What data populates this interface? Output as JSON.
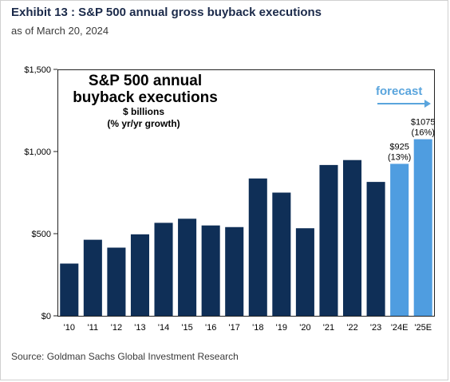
{
  "header": {
    "title": "Exhibit 13 : S&P 500 annual gross buyback executions",
    "subtitle": "as of March 20, 2024"
  },
  "source": "Source: Goldman Sachs Global Investment Research",
  "colors": {
    "actual": "#0f2f57",
    "forecast": "#4f9de0",
    "forecast_text": "#5aa5dd"
  },
  "chart_data": {
    "type": "bar",
    "title_lines": [
      "S&P 500 annual",
      "buyback executions"
    ],
    "subtitle_lines": [
      "$ billions",
      "(% yr/yr growth)"
    ],
    "forecast_label": "forecast",
    "ylim": [
      0,
      1500
    ],
    "y_ticks": [
      0,
      500,
      1000,
      1500
    ],
    "y_tick_labels": [
      "$0",
      "$500",
      "$1,000",
      "$1,500"
    ],
    "categories": [
      "'10",
      "'11",
      "'12",
      "'13",
      "'14",
      "'15",
      "'16",
      "'17",
      "'18",
      "'19",
      "'20",
      "'21",
      "'22",
      "'23",
      "'24E",
      "'25E"
    ],
    "values": [
      318,
      463,
      415,
      496,
      566,
      591,
      550,
      540,
      836,
      750,
      533,
      918,
      948,
      815,
      925,
      1075
    ],
    "forecast": [
      false,
      false,
      false,
      false,
      false,
      false,
      false,
      false,
      false,
      false,
      false,
      false,
      false,
      false,
      true,
      true
    ],
    "data_labels": [
      {
        "category": "'24E",
        "value": "$925",
        "growth": "(13%)"
      },
      {
        "category": "'25E",
        "value": "$1075",
        "growth": "(16%)"
      }
    ],
    "grid": false,
    "legend": "none"
  }
}
